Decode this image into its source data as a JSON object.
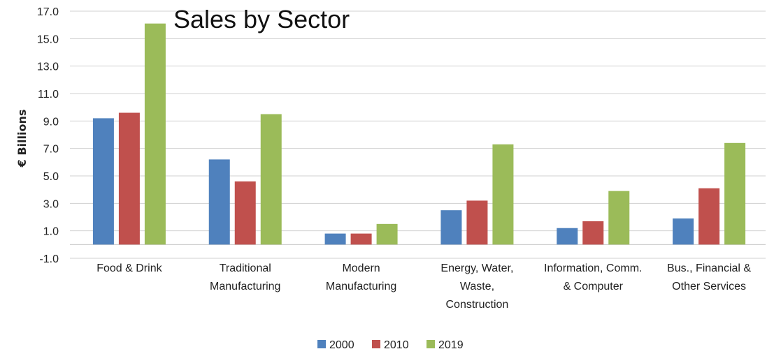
{
  "chart_data": {
    "type": "bar",
    "title": "Sales by Sector",
    "xlabel": "",
    "ylabel": "€ Billions",
    "ylim": [
      -1.0,
      17.0
    ],
    "yticks": [
      "-1.0",
      "1.0",
      "3.0",
      "5.0",
      "7.0",
      "9.0",
      "11.0",
      "13.0",
      "15.0",
      "17.0"
    ],
    "grid": true,
    "legend_position": "bottom",
    "categories": [
      [
        "Food & Drink"
      ],
      [
        "Traditional",
        "Manufacturing"
      ],
      [
        "Modern",
        "Manufacturing"
      ],
      [
        "Energy, Water,",
        "Waste,",
        "Construction"
      ],
      [
        "Information, Comm.",
        "& Computer"
      ],
      [
        "Bus., Financial &",
        "Other Services"
      ]
    ],
    "series": [
      {
        "name": "2000",
        "color": "#4F81BD",
        "values": [
          9.2,
          6.2,
          0.8,
          2.5,
          1.2,
          1.9
        ]
      },
      {
        "name": "2010",
        "color": "#C0504D",
        "values": [
          9.6,
          4.6,
          0.8,
          3.2,
          1.7,
          4.1
        ]
      },
      {
        "name": "2019",
        "color": "#9BBB59",
        "values": [
          16.1,
          9.5,
          1.5,
          7.3,
          3.9,
          7.4
        ]
      }
    ]
  }
}
